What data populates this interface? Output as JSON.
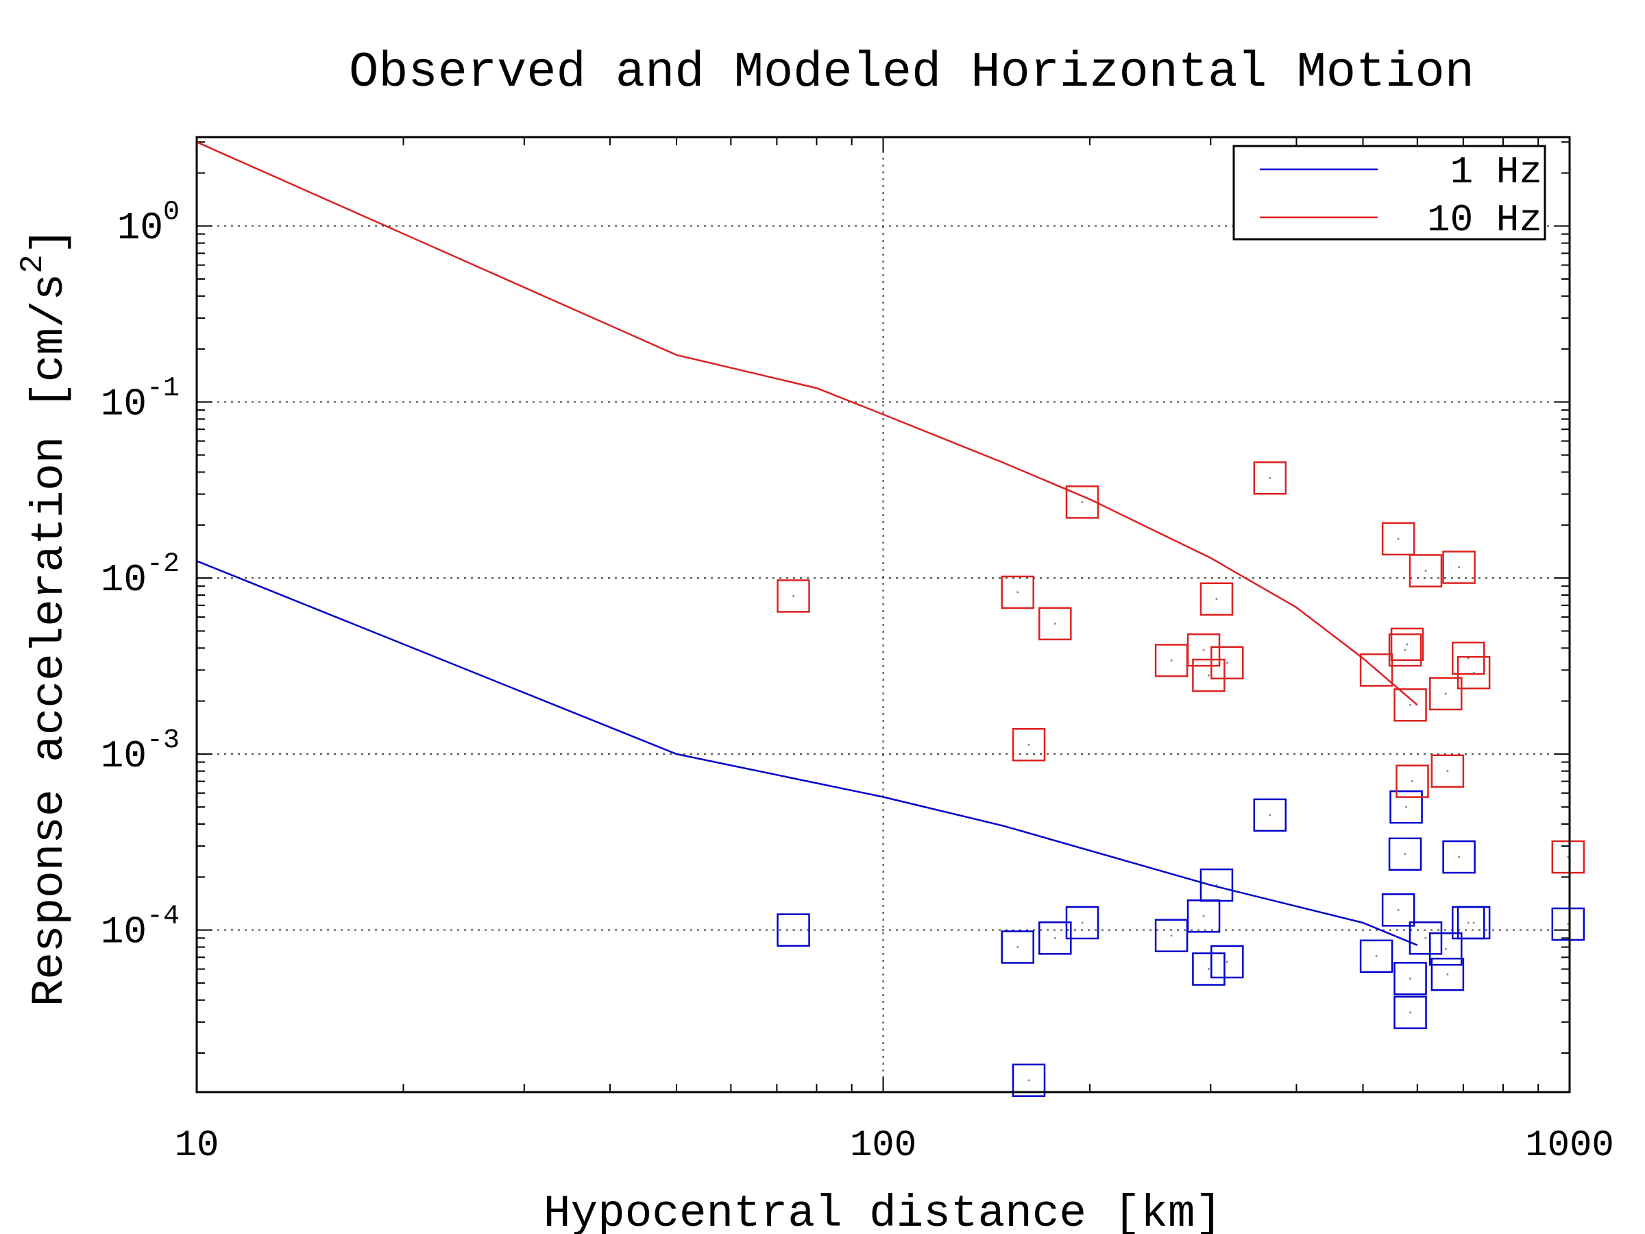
{
  "chart_data": {
    "type": "scatter",
    "title": "Observed and Modeled Horizontal Motion",
    "xlabel": "Hypocentral distance [km]",
    "ylabel": "Response acceleration [cm/s",
    "ylabel_sup": "2",
    "ylabel_end": "]",
    "xscale": "log",
    "yscale": "log",
    "xlim": [
      10,
      1000
    ],
    "ylim": [
      1.2e-05,
      3.2
    ],
    "grid": true,
    "legend_position": "top-right",
    "x_ticks": [
      {
        "value": 10,
        "label": "10"
      },
      {
        "value": 100,
        "label": "100"
      },
      {
        "value": 1000,
        "label": "1000"
      }
    ],
    "y_ticks": [
      {
        "value": 1,
        "base": "10",
        "exp": "0"
      },
      {
        "value": 0.1,
        "base": "10",
        "exp": "-1"
      },
      {
        "value": 0.01,
        "base": "10",
        "exp": "-2"
      },
      {
        "value": 0.001,
        "base": "10",
        "exp": "-3"
      },
      {
        "value": 0.0001,
        "base": "10",
        "exp": "-4"
      }
    ],
    "series": [
      {
        "name": "1 Hz",
        "color": "#0000cc",
        "model": [
          [
            10,
            0.0125
          ],
          [
            50,
            0.001
          ],
          [
            100,
            0.00057
          ],
          [
            150,
            0.00039
          ],
          [
            300,
            0.00018
          ],
          [
            500,
            0.00011
          ],
          [
            600,
            8.2e-05
          ]
        ],
        "observed": [
          [
            74,
            0.0001
          ],
          [
            157,
            8e-05
          ],
          [
            163,
            1.4e-05
          ],
          [
            178,
            9e-05
          ],
          [
            195,
            0.00011
          ],
          [
            263,
            9.3e-05
          ],
          [
            293,
            0.00012
          ],
          [
            298,
            6e-05
          ],
          [
            306,
            0.00018
          ],
          [
            317,
            6.6e-05
          ],
          [
            366,
            0.00045
          ],
          [
            523,
            7.1e-05
          ],
          [
            563,
            0.00013
          ],
          [
            576,
            0.00027
          ],
          [
            578,
            0.0005
          ],
          [
            586,
            5.3e-05
          ],
          [
            586,
            3.4e-05
          ],
          [
            617,
            9e-05
          ],
          [
            660,
            7.8e-05
          ],
          [
            664,
            5.6e-05
          ],
          [
            690,
            0.00026
          ],
          [
            712,
            0.00011
          ],
          [
            725,
            0.00011
          ],
          [
            995,
            0.000108
          ]
        ]
      },
      {
        "name": "10 Hz",
        "color": "#dd2020",
        "model": [
          [
            10,
            3.0
          ],
          [
            50,
            0.185
          ],
          [
            80,
            0.12
          ],
          [
            100,
            0.085
          ],
          [
            150,
            0.045
          ],
          [
            200,
            0.028
          ],
          [
            300,
            0.013
          ],
          [
            400,
            0.0068
          ],
          [
            500,
            0.0035
          ],
          [
            600,
            0.0019
          ]
        ],
        "observed": [
          [
            74,
            0.0079
          ],
          [
            157,
            0.0083
          ],
          [
            163,
            0.00113
          ],
          [
            178,
            0.0055
          ],
          [
            195,
            0.027
          ],
          [
            263,
            0.0034
          ],
          [
            293,
            0.0039
          ],
          [
            298,
            0.0028
          ],
          [
            306,
            0.0076
          ],
          [
            317,
            0.0033
          ],
          [
            366,
            0.037
          ],
          [
            523,
            0.003
          ],
          [
            563,
            0.0167
          ],
          [
            576,
            0.0039
          ],
          [
            580,
            0.0042
          ],
          [
            586,
            0.0019
          ],
          [
            590,
            0.0007
          ],
          [
            617,
            0.011
          ],
          [
            660,
            0.0022
          ],
          [
            664,
            0.0008
          ],
          [
            690,
            0.0115
          ],
          [
            712,
            0.0035
          ],
          [
            725,
            0.0029
          ],
          [
            995,
            0.00026
          ]
        ]
      }
    ]
  }
}
